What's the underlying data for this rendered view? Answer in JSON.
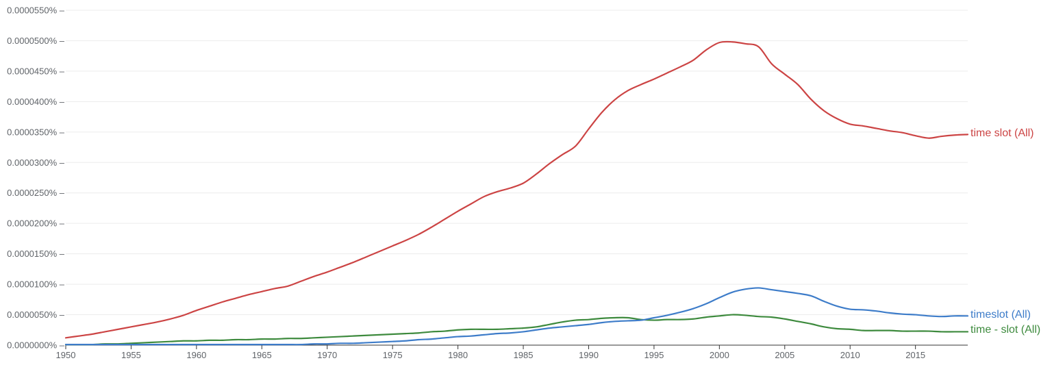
{
  "chart_data": {
    "type": "line",
    "title": "",
    "xlabel": "",
    "ylabel": "",
    "xlim": [
      1950,
      2019
    ],
    "ylim": [
      0,
      5.5e-05
    ],
    "x_ticks": [
      1950,
      1955,
      1960,
      1965,
      1970,
      1975,
      1980,
      1985,
      1990,
      1995,
      2000,
      2005,
      2010,
      2015
    ],
    "x_tick_labels": [
      "1950",
      "1955",
      "1960",
      "1965",
      "1970",
      "1975",
      "1980",
      "1985",
      "1990",
      "1995",
      "2000",
      "2005",
      "2010",
      "2015"
    ],
    "y_ticks": [
      0,
      5e-06,
      1e-05,
      1.5e-05,
      2e-05,
      2.5e-05,
      3e-05,
      3.5e-05,
      4e-05,
      4.5e-05,
      5e-05,
      5.5e-05
    ],
    "y_tick_labels": [
      "0.0000000%",
      "0.0000050%",
      "0.0000100%",
      "0.0000150%",
      "0.0000200%",
      "0.0000250%",
      "0.0000300%",
      "0.0000350%",
      "0.0000400%",
      "0.0000450%",
      "0.0000500%",
      "0.0000550%"
    ],
    "grid": true,
    "legend": "inline labels at right end of each series",
    "x": [
      1950,
      1951,
      1952,
      1953,
      1954,
      1955,
      1956,
      1957,
      1958,
      1959,
      1960,
      1961,
      1962,
      1963,
      1964,
      1965,
      1966,
      1967,
      1968,
      1969,
      1970,
      1971,
      1972,
      1973,
      1974,
      1975,
      1976,
      1977,
      1978,
      1979,
      1980,
      1981,
      1982,
      1983,
      1984,
      1985,
      1986,
      1987,
      1988,
      1989,
      1990,
      1991,
      1992,
      1993,
      1994,
      1995,
      1996,
      1997,
      1998,
      1999,
      2000,
      2001,
      2002,
      2003,
      2004,
      2005,
      2006,
      2007,
      2008,
      2009,
      2010,
      2011,
      2012,
      2013,
      2014,
      2015,
      2016,
      2017,
      2018,
      2019
    ],
    "series": [
      {
        "name": "time slot (All)",
        "color": "#cc4444",
        "values": [
          1.2e-06,
          1.5e-06,
          1.8e-06,
          2.2e-06,
          2.6e-06,
          3e-06,
          3.4e-06,
          3.8e-06,
          4.3e-06,
          4.9e-06,
          5.7e-06,
          6.4e-06,
          7.1e-06,
          7.7e-06,
          8.3e-06,
          8.8e-06,
          9.3e-06,
          9.7e-06,
          1.05e-05,
          1.13e-05,
          1.2e-05,
          1.28e-05,
          1.36e-05,
          1.45e-05,
          1.54e-05,
          1.63e-05,
          1.72e-05,
          1.82e-05,
          1.94e-05,
          2.07e-05,
          2.2e-05,
          2.32e-05,
          2.44e-05,
          2.52e-05,
          2.58e-05,
          2.66e-05,
          2.81e-05,
          2.98e-05,
          3.13e-05,
          3.27e-05,
          3.55e-05,
          3.82e-05,
          4.03e-05,
          4.18e-05,
          4.28e-05,
          4.37e-05,
          4.47e-05,
          4.57e-05,
          4.68e-05,
          4.85e-05,
          4.97e-05,
          4.98e-05,
          4.95e-05,
          4.9e-05,
          4.62e-05,
          4.45e-05,
          4.28e-05,
          4.04e-05,
          3.85e-05,
          3.72e-05,
          3.63e-05,
          3.6e-05,
          3.56e-05,
          3.52e-05,
          3.49e-05,
          3.44e-05,
          3.4e-05,
          3.43e-05,
          3.45e-05,
          3.46e-05
        ]
      },
      {
        "name": "timeslot (All)",
        "color": "#3d7cc9",
        "values": [
          1e-07,
          1e-07,
          1e-07,
          1e-07,
          1e-07,
          1e-07,
          1e-07,
          1e-07,
          1e-07,
          1e-07,
          1e-07,
          1e-07,
          1e-07,
          1e-07,
          1e-07,
          1e-07,
          1e-07,
          1e-07,
          1e-07,
          2e-07,
          2e-07,
          3e-07,
          3e-07,
          4e-07,
          5e-07,
          6e-07,
          7e-07,
          9e-07,
          1e-06,
          1.2e-06,
          1.4e-06,
          1.5e-06,
          1.7e-06,
          1.9e-06,
          2e-06,
          2.2e-06,
          2.5e-06,
          2.8e-06,
          3e-06,
          3.2e-06,
          3.4e-06,
          3.7e-06,
          3.9e-06,
          4e-06,
          4.1e-06,
          4.5e-06,
          4.9e-06,
          5.4e-06,
          6e-06,
          6.8e-06,
          7.8e-06,
          8.7e-06,
          9.2e-06,
          9.4e-06,
          9.1e-06,
          8.8e-06,
          8.5e-06,
          8.1e-06,
          7.2e-06,
          6.4e-06,
          5.9e-06,
          5.8e-06,
          5.6e-06,
          5.3e-06,
          5.1e-06,
          5e-06,
          4.8e-06,
          4.7e-06,
          4.8e-06,
          4.8e-06
        ]
      },
      {
        "name": "time - slot (All)",
        "color": "#3d8a3d",
        "values": [
          1e-07,
          1e-07,
          1e-07,
          2e-07,
          2e-07,
          3e-07,
          4e-07,
          5e-07,
          6e-07,
          7e-07,
          7e-07,
          8e-07,
          8e-07,
          9e-07,
          9e-07,
          1e-06,
          1e-06,
          1.1e-06,
          1.1e-06,
          1.2e-06,
          1.3e-06,
          1.4e-06,
          1.5e-06,
          1.6e-06,
          1.7e-06,
          1.8e-06,
          1.9e-06,
          2e-06,
          2.2e-06,
          2.3e-06,
          2.5e-06,
          2.6e-06,
          2.6e-06,
          2.6e-06,
          2.7e-06,
          2.8e-06,
          3e-06,
          3.4e-06,
          3.8e-06,
          4.1e-06,
          4.2e-06,
          4.4e-06,
          4.5e-06,
          4.5e-06,
          4.2e-06,
          4.1e-06,
          4.2e-06,
          4.2e-06,
          4.3e-06,
          4.6e-06,
          4.8e-06,
          5e-06,
          4.9e-06,
          4.7e-06,
          4.6e-06,
          4.3e-06,
          3.9e-06,
          3.5e-06,
          3e-06,
          2.7e-06,
          2.6e-06,
          2.4e-06,
          2.4e-06,
          2.4e-06,
          2.3e-06,
          2.3e-06,
          2.3e-06,
          2.2e-06,
          2.2e-06,
          2.2e-06
        ]
      }
    ]
  }
}
